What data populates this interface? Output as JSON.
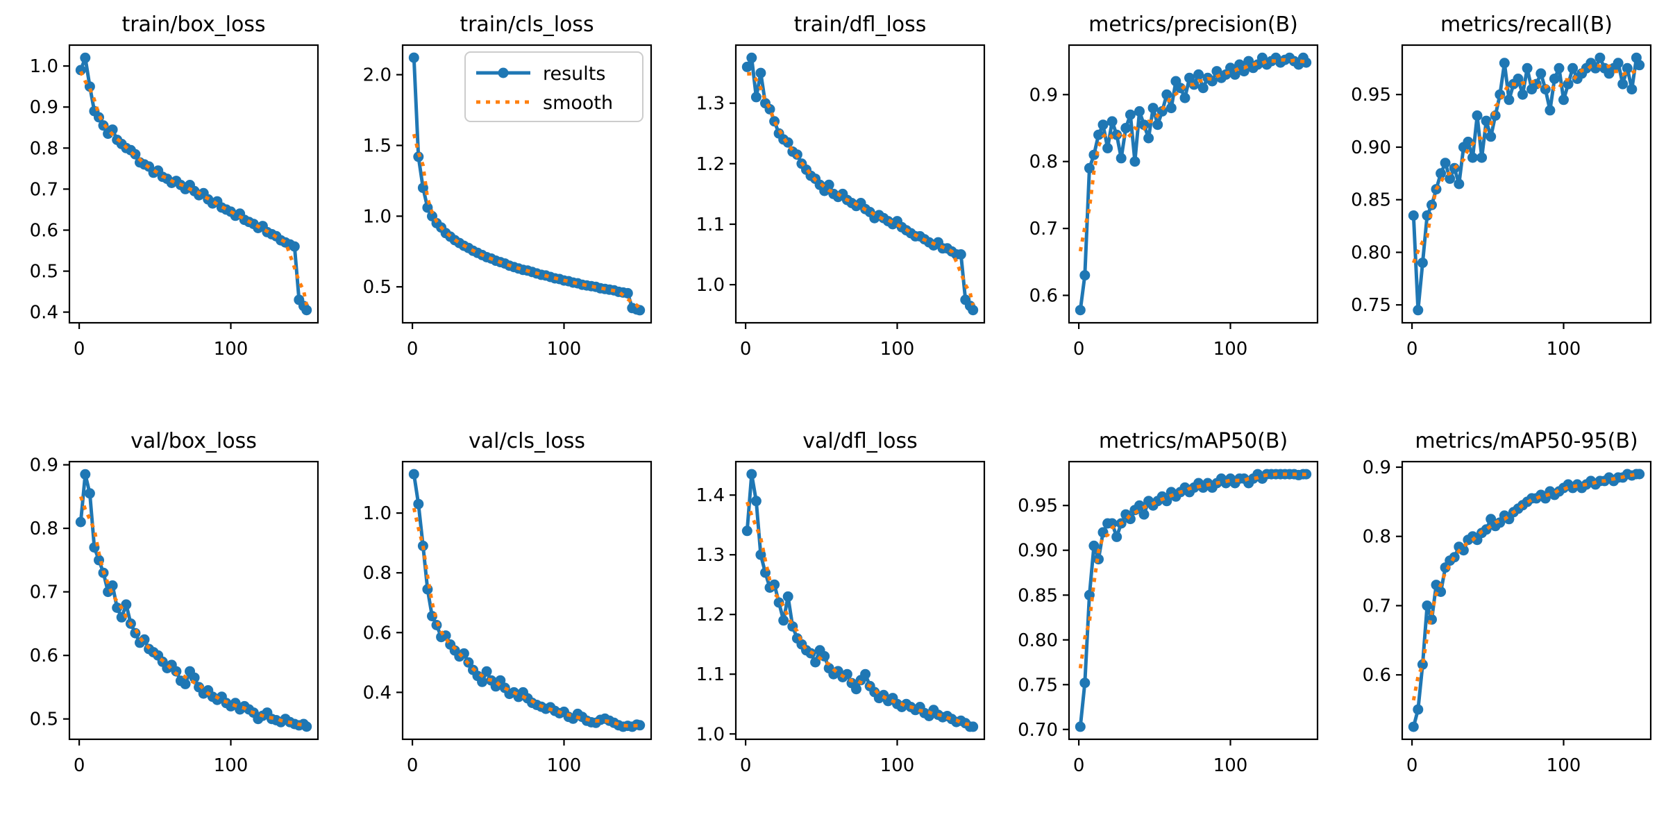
{
  "figure": {
    "background": "#ffffff",
    "colors": {
      "results": "#1f77b4",
      "smooth": "#ff7f0e",
      "axis": "#000000",
      "text": "#000000",
      "legend_border": "#cccccc"
    },
    "legend": {
      "results_label": "results",
      "smooth_label": "smooth"
    },
    "x_axis": {
      "xlim": [
        -6.45,
        157.45
      ],
      "ticks": [
        0,
        100
      ],
      "tick_labels": [
        "0",
        "100"
      ],
      "x": [
        1,
        4,
        7,
        10,
        13,
        16,
        19,
        22,
        25,
        28,
        31,
        34,
        37,
        40,
        43,
        46,
        49,
        52,
        55,
        58,
        61,
        64,
        67,
        70,
        73,
        76,
        79,
        82,
        85,
        88,
        91,
        94,
        97,
        100,
        103,
        106,
        109,
        112,
        115,
        118,
        121,
        124,
        127,
        130,
        133,
        136,
        139,
        142,
        145,
        148,
        150
      ]
    }
  },
  "chart_data": [
    {
      "type": "line",
      "title": "train/box_loss",
      "legend": false,
      "ylim": [
        0.374,
        1.051
      ],
      "yticks": [
        0.4,
        0.5,
        0.6,
        0.7,
        0.8,
        0.9,
        1.0
      ],
      "ytick_labels": [
        "0.4",
        "0.5",
        "0.6",
        "0.7",
        "0.8",
        "0.9",
        "1.0"
      ],
      "series": [
        {
          "name": "results",
          "y": [
            0.99,
            1.02,
            0.95,
            0.89,
            0.875,
            0.855,
            0.835,
            0.845,
            0.82,
            0.81,
            0.8,
            0.795,
            0.785,
            0.765,
            0.76,
            0.755,
            0.74,
            0.745,
            0.73,
            0.725,
            0.715,
            0.72,
            0.71,
            0.7,
            0.71,
            0.695,
            0.685,
            0.69,
            0.675,
            0.665,
            0.67,
            0.655,
            0.65,
            0.645,
            0.635,
            0.64,
            0.625,
            0.62,
            0.615,
            0.605,
            0.61,
            0.595,
            0.59,
            0.585,
            0.575,
            0.57,
            0.565,
            0.56,
            0.43,
            0.415,
            0.405
          ]
        },
        {
          "name": "smooth",
          "derived_from": "results",
          "method": "moving_average_window5"
        }
      ]
    },
    {
      "type": "line",
      "title": "train/cls_loss",
      "legend": true,
      "ylim": [
        0.246,
        2.209
      ],
      "yticks": [
        0.5,
        1.0,
        1.5,
        2.0
      ],
      "ytick_labels": [
        "0.5",
        "1.0",
        "1.5",
        "2.0"
      ],
      "series": [
        {
          "name": "results",
          "y": [
            2.12,
            1.42,
            1.2,
            1.06,
            1.0,
            0.95,
            0.92,
            0.88,
            0.855,
            0.83,
            0.81,
            0.79,
            0.775,
            0.755,
            0.74,
            0.725,
            0.71,
            0.7,
            0.685,
            0.675,
            0.665,
            0.65,
            0.64,
            0.63,
            0.62,
            0.615,
            0.605,
            0.595,
            0.585,
            0.58,
            0.57,
            0.56,
            0.555,
            0.545,
            0.54,
            0.53,
            0.525,
            0.515,
            0.51,
            0.505,
            0.5,
            0.49,
            0.485,
            0.48,
            0.475,
            0.465,
            0.46,
            0.455,
            0.35,
            0.34,
            0.335
          ]
        },
        {
          "name": "smooth",
          "derived_from": "results",
          "method": "moving_average_window5"
        }
      ]
    },
    {
      "type": "line",
      "title": "train/dfl_loss",
      "legend": false,
      "ylim": [
        0.937,
        1.396
      ],
      "yticks": [
        1.0,
        1.1,
        1.2,
        1.3
      ],
      "ytick_labels": [
        "1.0",
        "1.1",
        "1.2",
        "1.3"
      ],
      "series": [
        {
          "name": "results",
          "y": [
            1.36,
            1.375,
            1.31,
            1.35,
            1.3,
            1.29,
            1.27,
            1.25,
            1.24,
            1.235,
            1.22,
            1.215,
            1.2,
            1.19,
            1.18,
            1.175,
            1.165,
            1.155,
            1.165,
            1.15,
            1.145,
            1.15,
            1.14,
            1.135,
            1.13,
            1.135,
            1.125,
            1.12,
            1.11,
            1.115,
            1.11,
            1.105,
            1.1,
            1.105,
            1.095,
            1.09,
            1.085,
            1.08,
            1.08,
            1.075,
            1.07,
            1.065,
            1.07,
            1.06,
            1.06,
            1.055,
            1.05,
            1.05,
            0.975,
            0.965,
            0.958
          ]
        },
        {
          "name": "smooth",
          "derived_from": "results",
          "method": "moving_average_window5"
        }
      ]
    },
    {
      "type": "line",
      "title": "metrics/precision(B)",
      "legend": false,
      "ylim": [
        0.559,
        0.974
      ],
      "yticks": [
        0.6,
        0.7,
        0.8,
        0.9
      ],
      "ytick_labels": [
        "0.6",
        "0.7",
        "0.8",
        "0.9"
      ],
      "series": [
        {
          "name": "results",
          "y": [
            0.578,
            0.63,
            0.79,
            0.81,
            0.84,
            0.855,
            0.82,
            0.86,
            0.84,
            0.805,
            0.85,
            0.87,
            0.8,
            0.875,
            0.855,
            0.835,
            0.88,
            0.855,
            0.875,
            0.9,
            0.88,
            0.92,
            0.91,
            0.895,
            0.925,
            0.915,
            0.93,
            0.91,
            0.925,
            0.92,
            0.935,
            0.925,
            0.93,
            0.94,
            0.93,
            0.945,
            0.935,
            0.95,
            0.94,
            0.945,
            0.955,
            0.945,
            0.95,
            0.955,
            0.948,
            0.952,
            0.955,
            0.95,
            0.945,
            0.955,
            0.948
          ]
        },
        {
          "name": "smooth",
          "derived_from": "results",
          "method": "moving_average_window5"
        }
      ]
    },
    {
      "type": "line",
      "title": "metrics/recall(B)",
      "legend": false,
      "ylim": [
        0.733,
        0.997
      ],
      "yticks": [
        0.75,
        0.8,
        0.85,
        0.9,
        0.95
      ],
      "ytick_labels": [
        "0.75",
        "0.80",
        "0.85",
        "0.90",
        "0.95"
      ],
      "series": [
        {
          "name": "results",
          "y": [
            0.835,
            0.745,
            0.79,
            0.835,
            0.845,
            0.86,
            0.875,
            0.885,
            0.87,
            0.88,
            0.865,
            0.9,
            0.905,
            0.89,
            0.93,
            0.89,
            0.925,
            0.91,
            0.93,
            0.95,
            0.98,
            0.945,
            0.96,
            0.965,
            0.95,
            0.975,
            0.955,
            0.96,
            0.97,
            0.955,
            0.935,
            0.965,
            0.975,
            0.945,
            0.96,
            0.975,
            0.965,
            0.97,
            0.975,
            0.98,
            0.975,
            0.985,
            0.975,
            0.97,
            0.975,
            0.98,
            0.96,
            0.975,
            0.955,
            0.985,
            0.978
          ]
        },
        {
          "name": "smooth",
          "derived_from": "results",
          "method": "moving_average_window5"
        }
      ]
    },
    {
      "type": "line",
      "title": "val/box_loss",
      "legend": false,
      "ylim": [
        0.468,
        0.905
      ],
      "yticks": [
        0.5,
        0.6,
        0.7,
        0.8,
        0.9
      ],
      "ytick_labels": [
        "0.5",
        "0.6",
        "0.7",
        "0.8",
        "0.9"
      ],
      "series": [
        {
          "name": "results",
          "y": [
            0.81,
            0.885,
            0.855,
            0.77,
            0.75,
            0.73,
            0.7,
            0.71,
            0.675,
            0.66,
            0.68,
            0.65,
            0.635,
            0.62,
            0.625,
            0.61,
            0.605,
            0.6,
            0.59,
            0.58,
            0.585,
            0.575,
            0.56,
            0.555,
            0.575,
            0.565,
            0.55,
            0.54,
            0.545,
            0.535,
            0.53,
            0.535,
            0.525,
            0.52,
            0.525,
            0.515,
            0.52,
            0.515,
            0.51,
            0.5,
            0.505,
            0.51,
            0.5,
            0.498,
            0.495,
            0.5,
            0.495,
            0.492,
            0.49,
            0.492,
            0.488
          ]
        },
        {
          "name": "smooth",
          "derived_from": "results",
          "method": "moving_average_window5"
        }
      ]
    },
    {
      "type": "line",
      "title": "val/cls_loss",
      "legend": false,
      "ylim": [
        0.243,
        1.172
      ],
      "yticks": [
        0.4,
        0.6,
        0.8,
        1.0
      ],
      "ytick_labels": [
        "0.4",
        "0.6",
        "0.8",
        "1.0"
      ],
      "series": [
        {
          "name": "results",
          "y": [
            1.13,
            1.03,
            0.89,
            0.745,
            0.655,
            0.625,
            0.585,
            0.59,
            0.56,
            0.54,
            0.52,
            0.53,
            0.5,
            0.475,
            0.455,
            0.435,
            0.47,
            0.44,
            0.42,
            0.44,
            0.415,
            0.395,
            0.4,
            0.385,
            0.4,
            0.38,
            0.365,
            0.358,
            0.352,
            0.345,
            0.35,
            0.338,
            0.33,
            0.335,
            0.318,
            0.312,
            0.328,
            0.318,
            0.305,
            0.3,
            0.298,
            0.308,
            0.312,
            0.305,
            0.298,
            0.29,
            0.285,
            0.288,
            0.285,
            0.292,
            0.29
          ]
        },
        {
          "name": "smooth",
          "derived_from": "results",
          "method": "moving_average_window5"
        }
      ]
    },
    {
      "type": "line",
      "title": "val/dfl_loss",
      "legend": false,
      "ylim": [
        0.991,
        1.456
      ],
      "yticks": [
        1.0,
        1.1,
        1.2,
        1.3,
        1.4
      ],
      "ytick_labels": [
        "1.0",
        "1.1",
        "1.2",
        "1.3",
        "1.4"
      ],
      "series": [
        {
          "name": "results",
          "y": [
            1.34,
            1.435,
            1.39,
            1.3,
            1.27,
            1.245,
            1.25,
            1.22,
            1.19,
            1.23,
            1.18,
            1.16,
            1.15,
            1.14,
            1.135,
            1.12,
            1.14,
            1.13,
            1.11,
            1.1,
            1.105,
            1.095,
            1.1,
            1.085,
            1.075,
            1.09,
            1.1,
            1.08,
            1.07,
            1.06,
            1.065,
            1.055,
            1.06,
            1.05,
            1.045,
            1.05,
            1.045,
            1.04,
            1.045,
            1.035,
            1.03,
            1.04,
            1.032,
            1.028,
            1.03,
            1.025,
            1.02,
            1.022,
            1.018,
            1.012,
            1.012
          ]
        },
        {
          "name": "smooth",
          "derived_from": "results",
          "method": "moving_average_window5"
        }
      ]
    },
    {
      "type": "line",
      "title": "metrics/mAP50(B)",
      "legend": false,
      "ylim": [
        0.689,
        0.999
      ],
      "yticks": [
        0.7,
        0.75,
        0.8,
        0.85,
        0.9,
        0.95
      ],
      "ytick_labels": [
        "0.70",
        "0.75",
        "0.80",
        "0.85",
        "0.90",
        "0.95"
      ],
      "series": [
        {
          "name": "results",
          "y": [
            0.703,
            0.752,
            0.85,
            0.905,
            0.89,
            0.92,
            0.93,
            0.93,
            0.915,
            0.93,
            0.94,
            0.935,
            0.945,
            0.95,
            0.94,
            0.955,
            0.95,
            0.955,
            0.96,
            0.955,
            0.965,
            0.96,
            0.965,
            0.97,
            0.965,
            0.97,
            0.975,
            0.97,
            0.975,
            0.97,
            0.975,
            0.98,
            0.975,
            0.98,
            0.975,
            0.98,
            0.98,
            0.975,
            0.98,
            0.985,
            0.98,
            0.985,
            0.985,
            0.985,
            0.985,
            0.985,
            0.985,
            0.985,
            0.984,
            0.985,
            0.985
          ]
        },
        {
          "name": "smooth",
          "derived_from": "results",
          "method": "moving_average_window5"
        }
      ]
    },
    {
      "type": "line",
      "title": "metrics/mAP50-95(B)",
      "legend": false,
      "ylim": [
        0.507,
        0.908
      ],
      "yticks": [
        0.6,
        0.7,
        0.8,
        0.9
      ],
      "ytick_labels": [
        "0.6",
        "0.7",
        "0.8",
        "0.9"
      ],
      "series": [
        {
          "name": "results",
          "y": [
            0.525,
            0.55,
            0.615,
            0.7,
            0.68,
            0.73,
            0.72,
            0.755,
            0.765,
            0.77,
            0.785,
            0.78,
            0.795,
            0.8,
            0.795,
            0.805,
            0.81,
            0.825,
            0.815,
            0.82,
            0.83,
            0.825,
            0.835,
            0.84,
            0.845,
            0.85,
            0.855,
            0.855,
            0.86,
            0.855,
            0.865,
            0.86,
            0.865,
            0.87,
            0.875,
            0.87,
            0.875,
            0.87,
            0.875,
            0.88,
            0.875,
            0.88,
            0.88,
            0.885,
            0.88,
            0.885,
            0.885,
            0.89,
            0.888,
            0.89,
            0.89
          ]
        },
        {
          "name": "smooth",
          "derived_from": "results",
          "method": "moving_average_window5"
        }
      ]
    }
  ]
}
